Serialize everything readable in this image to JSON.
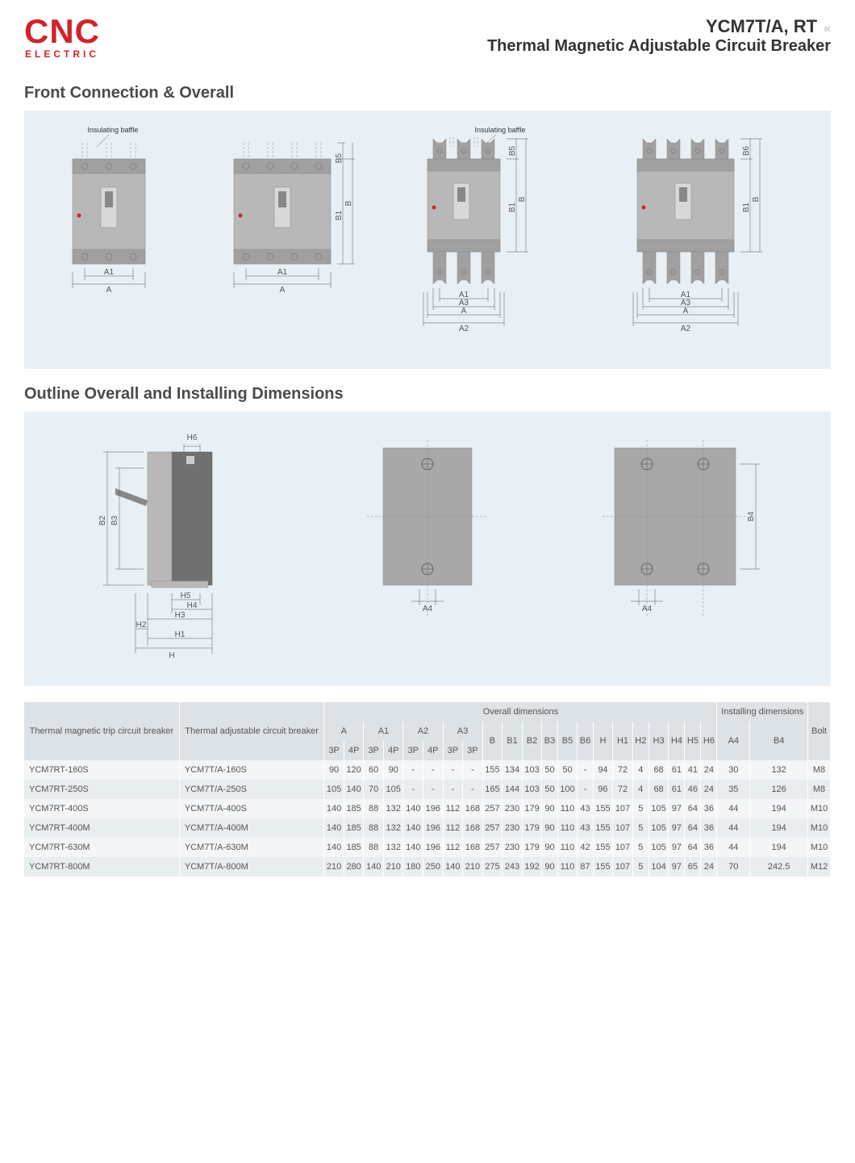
{
  "header": {
    "logo_main": "CNC",
    "logo_sub": "ELECTRIC",
    "model": "YCM7T/A, RT",
    "subtitle": "Thermal Magnetic Adjustable Circuit Breaker"
  },
  "section1_title": "Front Connection & Overall",
  "section2_title": "Outline Overall and Installing Dimensions",
  "diagram1": {
    "annot_baffle": "Insulating baffle",
    "labels": {
      "A": "A",
      "A1": "A1",
      "A2": "A2",
      "A3": "A3",
      "B": "B",
      "B1": "B1",
      "B5": "B5",
      "B6": "B6"
    },
    "colors": {
      "bg": "#e8f0f5",
      "body": "#b8b8b8",
      "body_dark": "#a0a0a0",
      "line": "#555555",
      "red": "#d2232a"
    }
  },
  "diagram2": {
    "labels": {
      "H": "H",
      "H1": "H1",
      "H2": "H2",
      "H3": "H3",
      "H4": "H4",
      "H5": "H5",
      "H6": "H6",
      "B2": "B2",
      "B3": "B3",
      "B4": "B4",
      "A4": "A4"
    },
    "colors": {
      "bg": "#e8f0f5",
      "body": "#b8b8b8",
      "body_dark": "#707070",
      "plate": "#a8a8a8"
    }
  },
  "table": {
    "headers": {
      "col1": "Thermal magnetic trip circuit breaker",
      "col2": "Thermal adjustable circuit breaker",
      "overall": "Overall dimensions",
      "installing": "Installing dimensions",
      "bolt": "Bolt",
      "dims": [
        "A",
        "A1",
        "A2",
        "A3",
        "B",
        "B1",
        "B2",
        "B3",
        "B5",
        "B6",
        "H",
        "H1",
        "H2",
        "H3",
        "H4",
        "H5",
        "H6"
      ],
      "install_dims": [
        "A4",
        "B4"
      ],
      "sub": [
        "3P",
        "4P",
        "3P",
        "4P",
        "3P",
        "4P",
        "3P",
        "3P"
      ]
    },
    "rows": [
      {
        "m1": "YCM7RT-160S",
        "m2": "YCM7T/A-160S",
        "v": [
          "90",
          "120",
          "60",
          "90",
          "-",
          "-",
          "-",
          "-",
          "155",
          "134",
          "103",
          "50",
          "50",
          "-",
          "94",
          "72",
          "4",
          "68",
          "61",
          "41",
          "24",
          "30",
          "132",
          "M8"
        ]
      },
      {
        "m1": "YCM7RT-250S",
        "m2": "YCM7T/A-250S",
        "v": [
          "105",
          "140",
          "70",
          "105",
          "-",
          "-",
          "-",
          "-",
          "165",
          "144",
          "103",
          "50",
          "100",
          "-",
          "96",
          "72",
          "4",
          "68",
          "61",
          "46",
          "24",
          "35",
          "126",
          "M8"
        ]
      },
      {
        "m1": "YCM7RT-400S",
        "m2": "YCM7T/A-400S",
        "v": [
          "140",
          "185",
          "88",
          "132",
          "140",
          "196",
          "112",
          "168",
          "257",
          "230",
          "179",
          "90",
          "110",
          "43",
          "155",
          "107",
          "5",
          "105",
          "97",
          "64",
          "36",
          "44",
          "194",
          "M10"
        ]
      },
      {
        "m1": "YCM7RT-400M",
        "m2": "YCM7T/A-400M",
        "v": [
          "140",
          "185",
          "88",
          "132",
          "140",
          "196",
          "112",
          "168",
          "257",
          "230",
          "179",
          "90",
          "110",
          "43",
          "155",
          "107",
          "5",
          "105",
          "97",
          "64",
          "36",
          "44",
          "194",
          "M10"
        ]
      },
      {
        "m1": "YCM7RT-630M",
        "m2": "YCM7T/A-630M",
        "v": [
          "140",
          "185",
          "88",
          "132",
          "140",
          "196",
          "112",
          "168",
          "257",
          "230",
          "179",
          "90",
          "110",
          "42",
          "155",
          "107",
          "5",
          "105",
          "97",
          "64",
          "36",
          "44",
          "194",
          "M10"
        ]
      },
      {
        "m1": "YCM7RT-800M",
        "m2": "YCM7T/A-800M",
        "v": [
          "210",
          "280",
          "140",
          "210",
          "180",
          "250",
          "140",
          "210",
          "275",
          "243",
          "192",
          "90",
          "110",
          "87",
          "155",
          "107",
          "5",
          "104",
          "97",
          "65",
          "24",
          "70",
          "242.5",
          "M12"
        ]
      }
    ]
  }
}
